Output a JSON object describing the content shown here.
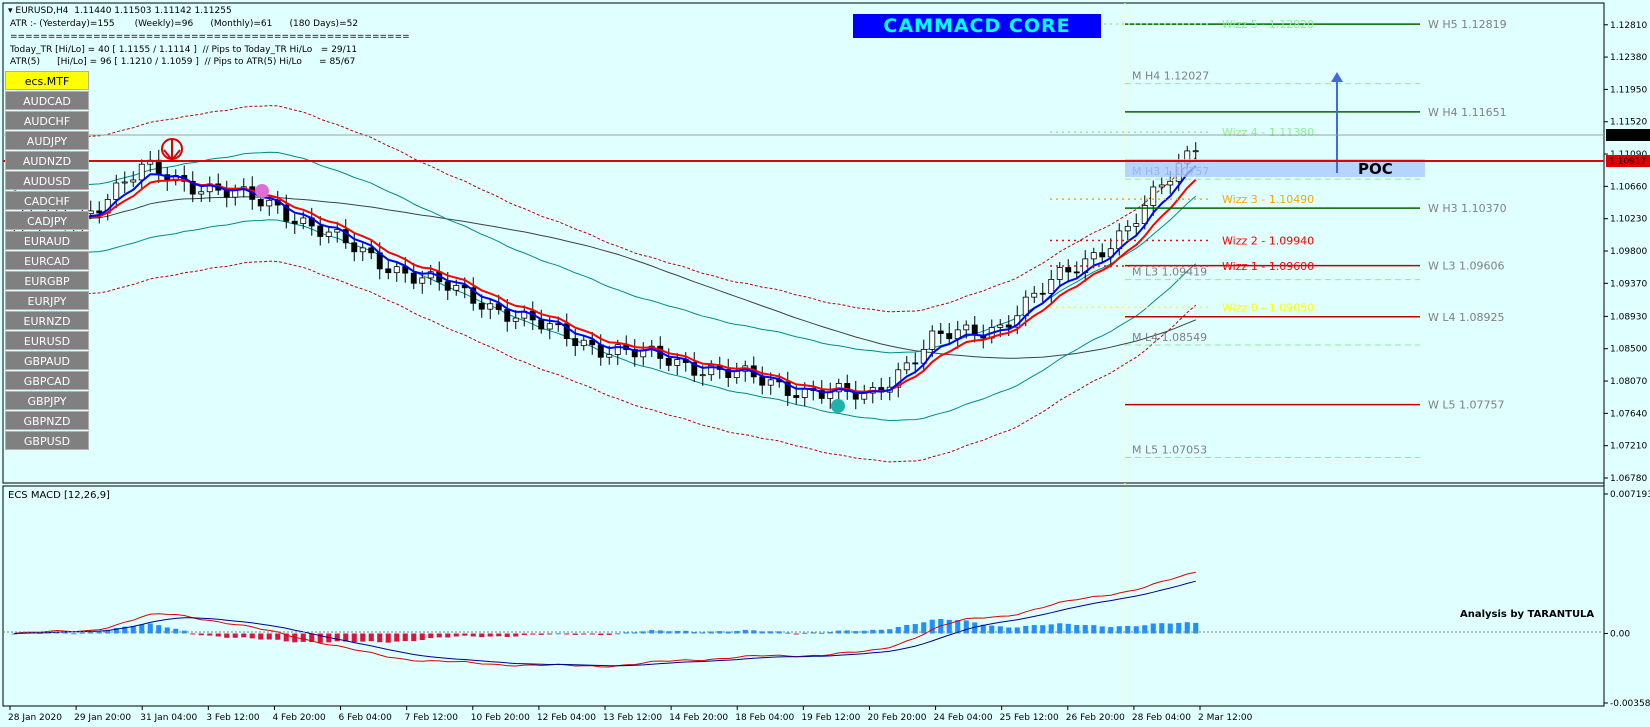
{
  "header": {
    "title": "EURUSD,H4  1.11440 1.11503 1.11142 1.11255",
    "atr_line": "ATR :- (Yesterday)=155       (Weekly)=96      (Monthly)=61      (180 Days)=52",
    "separator": "=====================================================",
    "today_tr_line": "Today_TR [Hi/Lo] = 40 [ 1.1155 / 1.1114 ]  // Pips to Today_TR Hi/Lo   = 29/11",
    "atr5_line": "ATR(5)      [Hi/Lo] = 96 [ 1.1210 / 1.1059 ]  // Pips to ATR(5) Hi/Lo      = 85/67"
  },
  "brand": "CAMMACD CORE",
  "symbols": {
    "active": "ecs.MTF",
    "list": [
      "AUDCAD",
      "AUDCHF",
      "AUDJPY",
      "AUDNZD",
      "AUDUSD",
      "CADCHF",
      "CADJPY",
      "EURAUD",
      "EURCAD",
      "EURGBP",
      "EURJPY",
      "EURNZD",
      "EURUSD",
      "GBPAUD",
      "GBPCAD",
      "GBPJPY",
      "GBPNZD",
      "GBPUSD"
    ]
  },
  "colors": {
    "background": "#e0ffff",
    "bull_candle": "#ffffff",
    "bear_candle": "#000000",
    "fast_ma": "#ff0000",
    "slow_ma": "#0000ff",
    "envelope": "#008b8b",
    "long_ma": "#404040",
    "atr_band": "#c00000",
    "macd_up": "#1e90ff",
    "macd_down": "#dc143c"
  },
  "labels": {
    "poc": "POC",
    "analysis": "Analysis by TARANTULA",
    "macd_title": "ECS MACD [12,26,9]",
    "bid_price": "1.11255",
    "red_line_price": "1.10917"
  },
  "chart_data": [
    {
      "type": "candlestick",
      "symbol": "EURUSD",
      "timeframe": "H4",
      "ylim": [
        1.0678,
        1.129
      ],
      "y_ticks": [
        "1.12810",
        "1.12380",
        "1.11950",
        "1.11520",
        "1.11090",
        "1.10660",
        "1.10230",
        "1.09800",
        "1.09370",
        "1.08930",
        "1.08500",
        "1.08070",
        "1.07640",
        "1.07210",
        "1.06780"
      ],
      "x_ticks": [
        "28 Jan 2020",
        "29 Jan 20:00",
        "31 Jan 04:00",
        "3 Feb 12:00",
        "4 Feb 20:00",
        "6 Feb 04:00",
        "7 Feb 12:00",
        "10 Feb 20:00",
        "12 Feb 04:00",
        "13 Feb 12:00",
        "14 Feb 20:00",
        "18 Feb 04:00",
        "19 Feb 12:00",
        "20 Feb 20:00",
        "24 Feb 04:00",
        "25 Feb 12:00",
        "26 Feb 20:00",
        "28 Feb 04:00",
        "2 Mar 12:00"
      ],
      "close_path_anchors": [
        {
          "x": "28 Jan 2020",
          "y": 1.1015
        },
        {
          "x": "29 Jan 20:00",
          "y": 1.1025
        },
        {
          "x": "31 Jan 04:00",
          "y": 1.109
        },
        {
          "x": "3 Feb 12:00",
          "y": 1.1062
        },
        {
          "x": "4 Feb 20:00",
          "y": 1.104
        },
        {
          "x": "6 Feb 04:00",
          "y": 1.099
        },
        {
          "x": "7 Feb 12:00",
          "y": 1.095
        },
        {
          "x": "10 Feb 20:00",
          "y": 1.0918
        },
        {
          "x": "12 Feb 04:00",
          "y": 1.088
        },
        {
          "x": "13 Feb 12:00",
          "y": 1.085
        },
        {
          "x": "14 Feb 20:00",
          "y": 1.0835
        },
        {
          "x": "18 Feb 04:00",
          "y": 1.0815
        },
        {
          "x": "19 Feb 12:00",
          "y": 1.0795
        },
        {
          "x": "20 Feb 20:00",
          "y": 1.0785
        },
        {
          "x": "24 Feb 04:00",
          "y": 1.0862
        },
        {
          "x": "25 Feb 12:00",
          "y": 1.088
        },
        {
          "x": "26 Feb 20:00",
          "y": 1.095
        },
        {
          "x": "28 Feb 04:00",
          "y": 1.101
        },
        {
          "x": "2 Mar 12:00",
          "y": 1.1125
        }
      ],
      "horizontal_levels": [
        {
          "label": "M  H4 1.12027",
          "price": 1.12027,
          "color": "#808080"
        },
        {
          "label": "W  H5 1.12819",
          "price": 1.12819,
          "color": "#808080"
        },
        {
          "label": "W  H4 1.11651",
          "price": 1.11651,
          "color": "#808080"
        },
        {
          "label": "W  H3 1.10370",
          "price": 1.1037,
          "color": "#808080"
        },
        {
          "label": "M  H3 1.10757",
          "price": 1.10757,
          "color": "#808080"
        },
        {
          "label": "W  L3 1.09606",
          "price": 1.09606,
          "color": "#808080"
        },
        {
          "label": "M  L3 1.09419",
          "price": 1.09419,
          "color": "#808080"
        },
        {
          "label": "W  L4 1.08925",
          "price": 1.08925,
          "color": "#808080"
        },
        {
          "label": "M  L4 1.08549",
          "price": 1.08549,
          "color": "#808080"
        },
        {
          "label": "W  L5 1.07757",
          "price": 1.07757,
          "color": "#808080"
        },
        {
          "label": "M  L5 1.07053",
          "price": 1.07053,
          "color": "#808080"
        },
        {
          "label": "Wizz 5 - 1.12820",
          "price": 1.1282,
          "color": "#90ee90"
        },
        {
          "label": "Wizz 4 - 1.11380",
          "price": 1.1138,
          "color": "#90ee90"
        },
        {
          "label": "Wizz 3 - 1.10490",
          "price": 1.1049,
          "color": "#ffa500"
        },
        {
          "label": "Wizz 2 - 1.09940",
          "price": 1.0994,
          "color": "#ff0000"
        },
        {
          "label": "Wizz 1 - 1.09600",
          "price": 1.096,
          "color": "#ff0000"
        },
        {
          "label": "Wizz 0 - 1.09050",
          "price": 1.0905,
          "color": "#ffff00"
        }
      ]
    },
    {
      "type": "histogram",
      "title": "ECS MACD [12,26,9]",
      "ylim": [
        -0.003585,
        0.0071939
      ],
      "y_ticks": [
        "0.0071939",
        "0.00",
        "-0.003585"
      ]
    }
  ]
}
